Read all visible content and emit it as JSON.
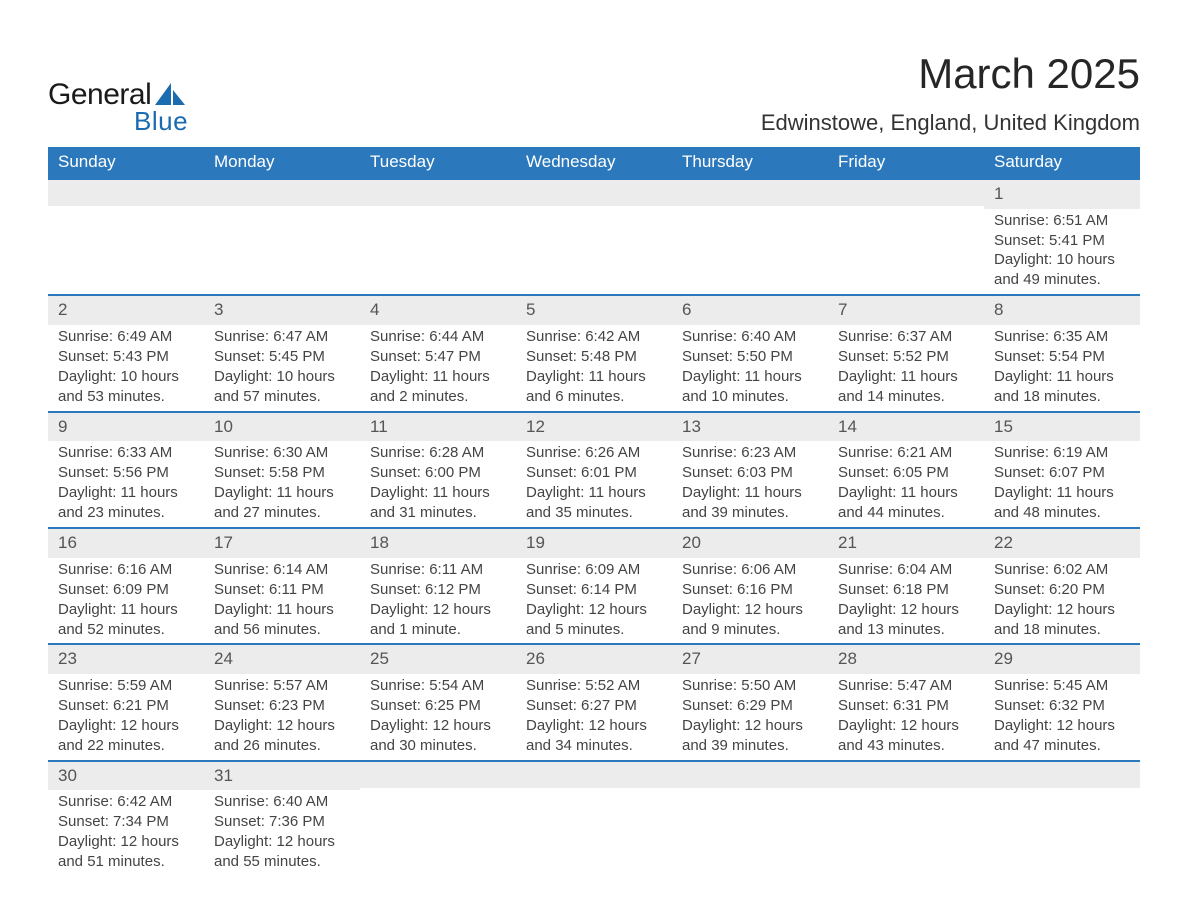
{
  "logo": {
    "word1": "General",
    "word2": "Blue",
    "sail_color": "#1a6bb0",
    "text_dark": "#1a1a1a"
  },
  "title": "March 2025",
  "location": "Edwinstowe, England, United Kingdom",
  "theme": {
    "header_bg": "#2b78bd",
    "header_fg": "#ffffff",
    "daynum_bg": "#ececec",
    "row_border": "#2b78bd",
    "body_text": "#444444",
    "title_fontsize": 42,
    "location_fontsize": 22,
    "th_fontsize": 17,
    "cell_fontsize": 15
  },
  "columns": [
    "Sunday",
    "Monday",
    "Tuesday",
    "Wednesday",
    "Thursday",
    "Friday",
    "Saturday"
  ],
  "weeks": [
    [
      null,
      null,
      null,
      null,
      null,
      null,
      {
        "n": "1",
        "sr": "6:51 AM",
        "ss": "5:41 PM",
        "dl": "10 hours and 49 minutes."
      }
    ],
    [
      {
        "n": "2",
        "sr": "6:49 AM",
        "ss": "5:43 PM",
        "dl": "10 hours and 53 minutes."
      },
      {
        "n": "3",
        "sr": "6:47 AM",
        "ss": "5:45 PM",
        "dl": "10 hours and 57 minutes."
      },
      {
        "n": "4",
        "sr": "6:44 AM",
        "ss": "5:47 PM",
        "dl": "11 hours and 2 minutes."
      },
      {
        "n": "5",
        "sr": "6:42 AM",
        "ss": "5:48 PM",
        "dl": "11 hours and 6 minutes."
      },
      {
        "n": "6",
        "sr": "6:40 AM",
        "ss": "5:50 PM",
        "dl": "11 hours and 10 minutes."
      },
      {
        "n": "7",
        "sr": "6:37 AM",
        "ss": "5:52 PM",
        "dl": "11 hours and 14 minutes."
      },
      {
        "n": "8",
        "sr": "6:35 AM",
        "ss": "5:54 PM",
        "dl": "11 hours and 18 minutes."
      }
    ],
    [
      {
        "n": "9",
        "sr": "6:33 AM",
        "ss": "5:56 PM",
        "dl": "11 hours and 23 minutes."
      },
      {
        "n": "10",
        "sr": "6:30 AM",
        "ss": "5:58 PM",
        "dl": "11 hours and 27 minutes."
      },
      {
        "n": "11",
        "sr": "6:28 AM",
        "ss": "6:00 PM",
        "dl": "11 hours and 31 minutes."
      },
      {
        "n": "12",
        "sr": "6:26 AM",
        "ss": "6:01 PM",
        "dl": "11 hours and 35 minutes."
      },
      {
        "n": "13",
        "sr": "6:23 AM",
        "ss": "6:03 PM",
        "dl": "11 hours and 39 minutes."
      },
      {
        "n": "14",
        "sr": "6:21 AM",
        "ss": "6:05 PM",
        "dl": "11 hours and 44 minutes."
      },
      {
        "n": "15",
        "sr": "6:19 AM",
        "ss": "6:07 PM",
        "dl": "11 hours and 48 minutes."
      }
    ],
    [
      {
        "n": "16",
        "sr": "6:16 AM",
        "ss": "6:09 PM",
        "dl": "11 hours and 52 minutes."
      },
      {
        "n": "17",
        "sr": "6:14 AM",
        "ss": "6:11 PM",
        "dl": "11 hours and 56 minutes."
      },
      {
        "n": "18",
        "sr": "6:11 AM",
        "ss": "6:12 PM",
        "dl": "12 hours and 1 minute."
      },
      {
        "n": "19",
        "sr": "6:09 AM",
        "ss": "6:14 PM",
        "dl": "12 hours and 5 minutes."
      },
      {
        "n": "20",
        "sr": "6:06 AM",
        "ss": "6:16 PM",
        "dl": "12 hours and 9 minutes."
      },
      {
        "n": "21",
        "sr": "6:04 AM",
        "ss": "6:18 PM",
        "dl": "12 hours and 13 minutes."
      },
      {
        "n": "22",
        "sr": "6:02 AM",
        "ss": "6:20 PM",
        "dl": "12 hours and 18 minutes."
      }
    ],
    [
      {
        "n": "23",
        "sr": "5:59 AM",
        "ss": "6:21 PM",
        "dl": "12 hours and 22 minutes."
      },
      {
        "n": "24",
        "sr": "5:57 AM",
        "ss": "6:23 PM",
        "dl": "12 hours and 26 minutes."
      },
      {
        "n": "25",
        "sr": "5:54 AM",
        "ss": "6:25 PM",
        "dl": "12 hours and 30 minutes."
      },
      {
        "n": "26",
        "sr": "5:52 AM",
        "ss": "6:27 PM",
        "dl": "12 hours and 34 minutes."
      },
      {
        "n": "27",
        "sr": "5:50 AM",
        "ss": "6:29 PM",
        "dl": "12 hours and 39 minutes."
      },
      {
        "n": "28",
        "sr": "5:47 AM",
        "ss": "6:31 PM",
        "dl": "12 hours and 43 minutes."
      },
      {
        "n": "29",
        "sr": "5:45 AM",
        "ss": "6:32 PM",
        "dl": "12 hours and 47 minutes."
      }
    ],
    [
      {
        "n": "30",
        "sr": "6:42 AM",
        "ss": "7:34 PM",
        "dl": "12 hours and 51 minutes."
      },
      {
        "n": "31",
        "sr": "6:40 AM",
        "ss": "7:36 PM",
        "dl": "12 hours and 55 minutes."
      },
      null,
      null,
      null,
      null,
      null
    ]
  ],
  "labels": {
    "sunrise": "Sunrise: ",
    "sunset": "Sunset: ",
    "daylight": "Daylight: "
  }
}
